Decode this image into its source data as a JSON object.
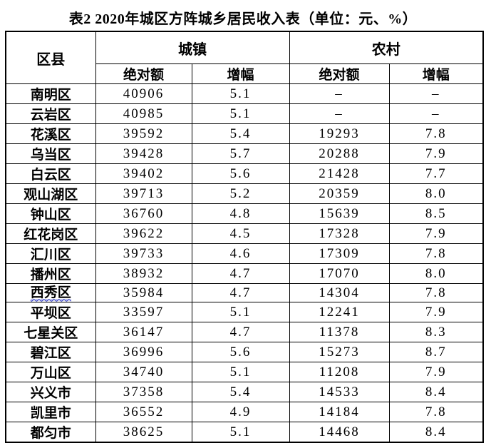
{
  "title": "表2 2020年城区方阵城乡居民收入表（单位：元、%）",
  "colors": {
    "grid_border": "#000000",
    "spellcheck_underline": "#3a45c8",
    "text": "#000000",
    "background": "#ffffff"
  },
  "table": {
    "corner_header": "区县",
    "groups": [
      {
        "label": "城镇",
        "sub": [
          "绝对额",
          "增幅"
        ]
      },
      {
        "label": "农村",
        "sub": [
          "绝对额",
          "增幅"
        ]
      }
    ],
    "rows": [
      {
        "district": "南明区",
        "urban_abs": "40906",
        "urban_growth": "5.1",
        "rural_abs": "–",
        "rural_growth": "–"
      },
      {
        "district": "云岩区",
        "urban_abs": "40985",
        "urban_growth": "5.1",
        "rural_abs": "–",
        "rural_growth": "–"
      },
      {
        "district": "花溪区",
        "urban_abs": "39592",
        "urban_growth": "5.4",
        "rural_abs": "19293",
        "rural_growth": "7.8"
      },
      {
        "district": "乌当区",
        "urban_abs": "39428",
        "urban_growth": "5.7",
        "rural_abs": "20288",
        "rural_growth": "7.9"
      },
      {
        "district": "白云区",
        "urban_abs": "39402",
        "urban_growth": "5.6",
        "rural_abs": "21428",
        "rural_growth": "7.7"
      },
      {
        "district": "观山湖区",
        "urban_abs": "39713",
        "urban_growth": "5.2",
        "rural_abs": "20359",
        "rural_growth": "8.0"
      },
      {
        "district": "钟山区",
        "urban_abs": "36760",
        "urban_growth": "4.8",
        "rural_abs": "15639",
        "rural_growth": "8.5"
      },
      {
        "district": "红花岗区",
        "urban_abs": "39622",
        "urban_growth": "4.5",
        "rural_abs": "17328",
        "rural_growth": "7.9"
      },
      {
        "district": "汇川区",
        "urban_abs": "39733",
        "urban_growth": "4.6",
        "rural_abs": "17309",
        "rural_growth": "7.8"
      },
      {
        "district": "播州区",
        "urban_abs": "38932",
        "urban_growth": "4.7",
        "rural_abs": "17070",
        "rural_growth": "8.0"
      },
      {
        "district": "西秀区",
        "urban_abs": "35984",
        "urban_growth": "4.7",
        "rural_abs": "14304",
        "rural_growth": "7.8",
        "spellcheck_underline": true
      },
      {
        "district": "平坝区",
        "urban_abs": "33597",
        "urban_growth": "5.1",
        "rural_abs": "12241",
        "rural_growth": "7.9"
      },
      {
        "district": "七星关区",
        "urban_abs": "36147",
        "urban_growth": "4.7",
        "rural_abs": "11378",
        "rural_growth": "8.3"
      },
      {
        "district": "碧江区",
        "urban_abs": "36996",
        "urban_growth": "5.6",
        "rural_abs": "15273",
        "rural_growth": "8.7"
      },
      {
        "district": "万山区",
        "urban_abs": "34740",
        "urban_growth": "5.1",
        "rural_abs": "11208",
        "rural_growth": "7.9"
      },
      {
        "district": "兴义市",
        "urban_abs": "37358",
        "urban_growth": "5.4",
        "rural_abs": "14533",
        "rural_growth": "8.4"
      },
      {
        "district": "凯里市",
        "urban_abs": "36552",
        "urban_growth": "4.9",
        "rural_abs": "14184",
        "rural_growth": "7.8"
      },
      {
        "district": "都匀市",
        "urban_abs": "38625",
        "urban_growth": "5.1",
        "rural_abs": "14468",
        "rural_growth": "8.4"
      }
    ]
  }
}
